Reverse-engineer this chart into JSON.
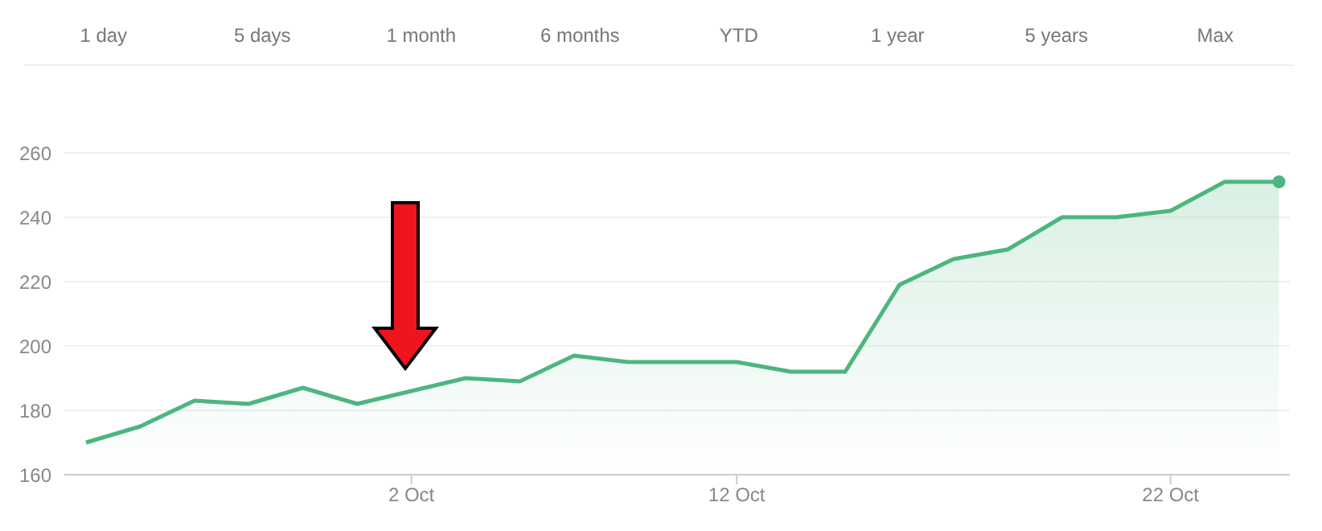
{
  "chart_data": {
    "type": "area",
    "annotations": [
      "1 day",
      "5 days",
      "1 month",
      "6 months",
      "YTD",
      "1 year",
      "5 years",
      "Max"
    ],
    "categories": [
      null,
      null,
      null,
      null,
      null,
      null,
      "2 Oct",
      null,
      null,
      null,
      null,
      null,
      "12 Oct",
      null,
      null,
      null,
      null,
      null,
      null,
      null,
      "22 Oct",
      null,
      null
    ],
    "series": [
      {
        "color": "#4cb67e",
        "values": [
          170,
          175,
          183,
          182,
          187,
          182,
          186,
          190,
          189,
          197,
          195,
          195,
          195,
          192,
          192,
          219,
          227,
          230,
          240,
          240,
          242,
          251,
          251
        ]
      }
    ],
    "ylim": [
      160,
      260
    ],
    "yticks": [
      160,
      180,
      200,
      220,
      240,
      260
    ],
    "grid": "y"
  }
}
